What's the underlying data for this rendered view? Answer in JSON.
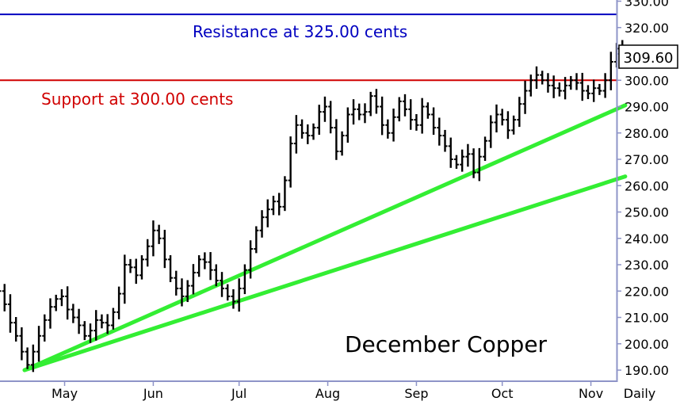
{
  "chart_data": {
    "type": "line",
    "title": "December Copper",
    "period_label": "Daily",
    "ylim": [
      185,
      333
    ],
    "y_ticks": [
      "190.00",
      "200.00",
      "210.00",
      "220.00",
      "230.00",
      "240.00",
      "250.00",
      "260.00",
      "270.00",
      "280.00",
      "290.00",
      "300.00",
      "310.00",
      "320.00",
      "330.00"
    ],
    "x_months": [
      "May",
      "Jun",
      "Jul",
      "Aug",
      "Sep",
      "Oct",
      "Nov"
    ],
    "x_range": [
      "2013-05-01",
      "2013-11-27"
    ],
    "last_price": "309.60",
    "levels": [
      {
        "label": "Resistance at 325.00 cents",
        "value": 325.0,
        "color": "#0000c0"
      },
      {
        "label": "Support at 300.00 cents",
        "value": 300.0,
        "color": "#d00000"
      }
    ],
    "trendlines": [
      {
        "from": [
          "2013-05-01",
          190.0
        ],
        "to": [
          "2013-11-27",
          290.5
        ],
        "color": "#33ee33"
      },
      {
        "from": [
          "2013-05-01",
          190.0
        ],
        "to": [
          "2013-11-27",
          263.5
        ],
        "color": "#33ee33"
      }
    ],
    "series": [
      {
        "values": [
          [
            "2013-04-22",
            220
          ],
          [
            "2013-04-24",
            215
          ],
          [
            "2013-04-26",
            208
          ],
          [
            "2013-04-28",
            203
          ],
          [
            "2013-04-30",
            197
          ],
          [
            "2013-05-02",
            192
          ],
          [
            "2013-05-04",
            197
          ],
          [
            "2013-05-06",
            203
          ],
          [
            "2013-05-08",
            209
          ],
          [
            "2013-05-10",
            214
          ],
          [
            "2013-05-12",
            217
          ],
          [
            "2013-05-14",
            218
          ],
          [
            "2013-05-16",
            213
          ],
          [
            "2013-05-18",
            210
          ],
          [
            "2013-05-20",
            207
          ],
          [
            "2013-05-22",
            203
          ],
          [
            "2013-05-24",
            205
          ],
          [
            "2013-05-26",
            209
          ],
          [
            "2013-05-28",
            208
          ],
          [
            "2013-05-30",
            207
          ],
          [
            "2013-06-01",
            212
          ],
          [
            "2013-06-03",
            219
          ],
          [
            "2013-06-05",
            230
          ],
          [
            "2013-06-07",
            229
          ],
          [
            "2013-06-09",
            226
          ],
          [
            "2013-06-11",
            232
          ],
          [
            "2013-06-13",
            237
          ],
          [
            "2013-06-15",
            243
          ],
          [
            "2013-06-17",
            240
          ],
          [
            "2013-06-19",
            232
          ],
          [
            "2013-06-21",
            225
          ],
          [
            "2013-06-23",
            221
          ],
          [
            "2013-06-25",
            218
          ],
          [
            "2013-06-27",
            222
          ],
          [
            "2013-06-29",
            227
          ],
          [
            "2013-07-01",
            232
          ],
          [
            "2013-07-03",
            231
          ],
          [
            "2013-07-05",
            228
          ],
          [
            "2013-07-07",
            224
          ],
          [
            "2013-07-09",
            221
          ],
          [
            "2013-07-11",
            218
          ],
          [
            "2013-07-13",
            216
          ],
          [
            "2013-07-15",
            221
          ],
          [
            "2013-07-17",
            228
          ],
          [
            "2013-07-19",
            236
          ],
          [
            "2013-07-21",
            243
          ],
          [
            "2013-07-23",
            248
          ],
          [
            "2013-07-25",
            251
          ],
          [
            "2013-07-27",
            254
          ],
          [
            "2013-07-29",
            252
          ],
          [
            "2013-07-31",
            262
          ],
          [
            "2013-08-02",
            276
          ],
          [
            "2013-08-04",
            283
          ],
          [
            "2013-08-06",
            280
          ],
          [
            "2013-08-08",
            279
          ],
          [
            "2013-08-10",
            282
          ],
          [
            "2013-08-12",
            288
          ],
          [
            "2013-08-14",
            290
          ],
          [
            "2013-08-16",
            282
          ],
          [
            "2013-08-18",
            273
          ],
          [
            "2013-08-20",
            279
          ],
          [
            "2013-08-22",
            287
          ],
          [
            "2013-08-24",
            289
          ],
          [
            "2013-08-26",
            287
          ],
          [
            "2013-08-28",
            288
          ],
          [
            "2013-08-30",
            294
          ],
          [
            "2013-09-01",
            290
          ],
          [
            "2013-09-03",
            283
          ],
          [
            "2013-09-05",
            280
          ],
          [
            "2013-09-07",
            286
          ],
          [
            "2013-09-09",
            292
          ],
          [
            "2013-09-11",
            289
          ],
          [
            "2013-09-13",
            285
          ],
          [
            "2013-09-15",
            283
          ],
          [
            "2013-09-17",
            290
          ],
          [
            "2013-09-19",
            287
          ],
          [
            "2013-09-21",
            282
          ],
          [
            "2013-09-23",
            279
          ],
          [
            "2013-09-25",
            275
          ],
          [
            "2013-09-27",
            270
          ],
          [
            "2013-09-29",
            268
          ],
          [
            "2013-10-01",
            271
          ],
          [
            "2013-10-03",
            272
          ],
          [
            "2013-10-05",
            265
          ],
          [
            "2013-10-07",
            271
          ],
          [
            "2013-10-09",
            277
          ],
          [
            "2013-10-11",
            284
          ],
          [
            "2013-10-13",
            287
          ],
          [
            "2013-10-15",
            285
          ],
          [
            "2013-10-17",
            281
          ],
          [
            "2013-10-19",
            285
          ],
          [
            "2013-10-21",
            291
          ],
          [
            "2013-10-23",
            296
          ],
          [
            "2013-10-25",
            300
          ],
          [
            "2013-10-27",
            302
          ],
          [
            "2013-10-29",
            300
          ],
          [
            "2013-10-31",
            298
          ],
          [
            "2013-11-02",
            297
          ],
          [
            "2013-11-04",
            296
          ],
          [
            "2013-11-06",
            298
          ],
          [
            "2013-11-08",
            300
          ],
          [
            "2013-11-10",
            299
          ],
          [
            "2013-11-12",
            296
          ],
          [
            "2013-11-14",
            295
          ],
          [
            "2013-11-16",
            297
          ],
          [
            "2013-11-18",
            296
          ],
          [
            "2013-11-20",
            300
          ],
          [
            "2013-11-22",
            307
          ],
          [
            "2013-11-24",
            312
          ],
          [
            "2013-11-26",
            310
          ],
          [
            "2013-11-27",
            309.6
          ]
        ]
      }
    ]
  }
}
